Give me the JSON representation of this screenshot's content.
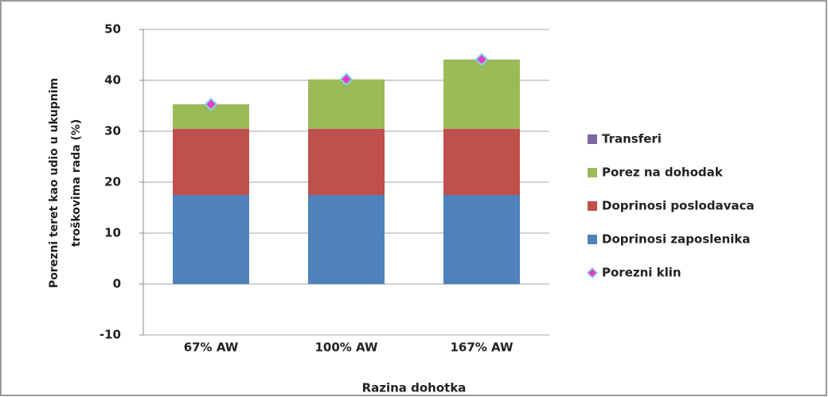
{
  "chart_data": {
    "type": "bar",
    "stacked": true,
    "ylabel": [
      "Porezni teret kao udio u ukupnim",
      "troškovima rada (%)"
    ],
    "xlabel": "Razina dohotka",
    "categories": [
      "67% AW",
      "100% AW",
      "167% AW"
    ],
    "series": [
      {
        "name": "Doprinosi zaposlenika",
        "type": "bar",
        "color": "#4f81bd",
        "values": [
          17.5,
          17.5,
          17.5
        ]
      },
      {
        "name": "Doprinosi poslodavaca",
        "type": "bar",
        "color": "#c0504d",
        "values": [
          13.0,
          13.0,
          13.0
        ]
      },
      {
        "name": "Porez na dohodak",
        "type": "bar",
        "color": "#9bbb59",
        "values": [
          4.8,
          9.7,
          13.6
        ]
      },
      {
        "name": "Transferi",
        "type": "bar",
        "color": "#8064a2",
        "values": [
          0,
          0,
          0
        ]
      },
      {
        "name": "Porezni klin",
        "type": "scatter",
        "color": "#e83cc8",
        "values": [
          35.3,
          40.2,
          44.1
        ]
      }
    ],
    "ylim": [
      -10,
      50
    ],
    "yticks": [
      -10,
      0,
      10,
      20,
      30,
      40,
      50
    ],
    "grid": true,
    "legend": "right"
  }
}
